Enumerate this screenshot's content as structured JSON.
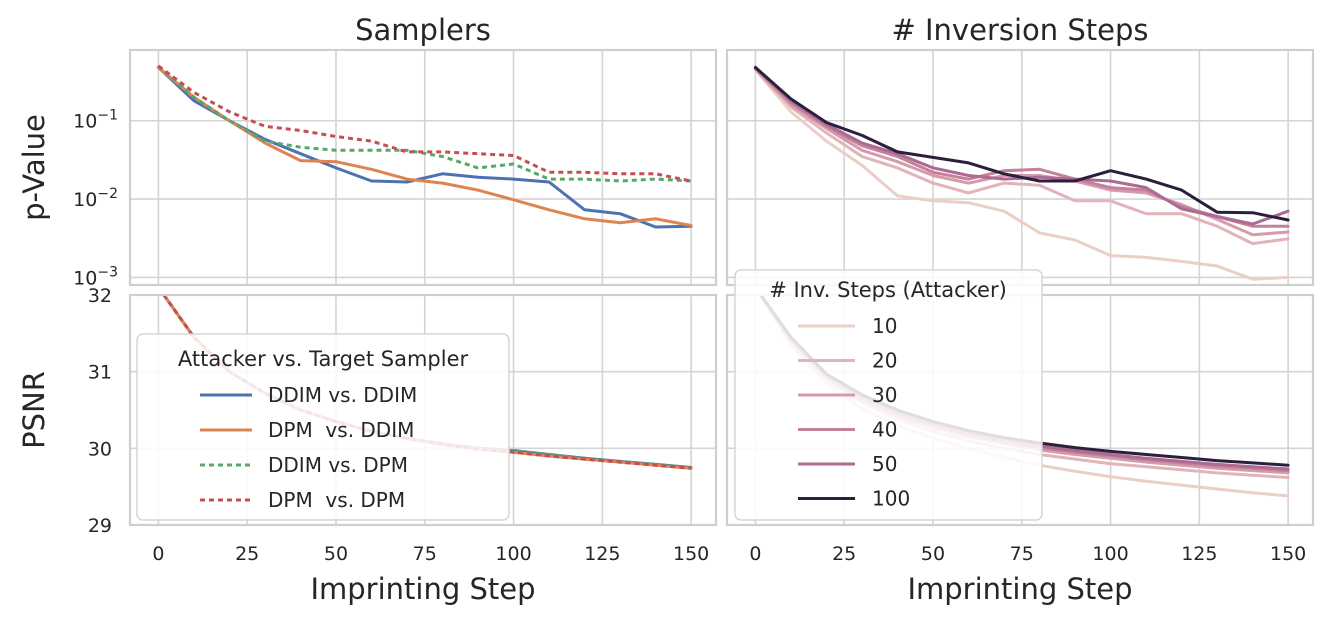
{
  "chart_data": [
    {
      "type": "line",
      "panel": "top-left",
      "title": "Samplers",
      "xlabel": "",
      "ylabel": "p-Value",
      "yscale": "log",
      "xlim": [
        -8,
        157
      ],
      "ylim": [
        0.0008,
        0.8
      ],
      "xticks": [
        0,
        25,
        50,
        75,
        100,
        125,
        150
      ],
      "yticks": [
        0.001,
        0.01,
        0.1
      ],
      "ytick_labels": [
        {
          "base": "10",
          "exp": "−3"
        },
        {
          "base": "10",
          "exp": "−2"
        },
        {
          "base": "10",
          "exp": "−1"
        }
      ],
      "grid": true,
      "x": [
        0,
        10,
        20,
        30,
        40,
        50,
        60,
        70,
        80,
        90,
        100,
        110,
        120,
        130,
        140,
        150
      ],
      "series": [
        {
          "name": "DDIM vs. DDIM",
          "color": "#4c72b0",
          "dash": "solid",
          "values": [
            0.48,
            0.18,
            0.1,
            0.058,
            0.038,
            0.025,
            0.017,
            0.0165,
            0.021,
            0.019,
            0.018,
            0.0165,
            0.0073,
            0.0065,
            0.0044,
            0.0045
          ]
        },
        {
          "name": "DPM  vs. DDIM",
          "color": "#dd8452",
          "dash": "solid",
          "values": [
            0.48,
            0.2,
            0.1,
            0.052,
            0.031,
            0.03,
            0.024,
            0.018,
            0.016,
            0.013,
            0.0098,
            0.0073,
            0.0056,
            0.005,
            0.0056,
            0.0046
          ]
        },
        {
          "name": "DDIM vs. DPM",
          "color": "#55a868",
          "dash": "dotted",
          "values": [
            0.5,
            0.2,
            0.1,
            0.055,
            0.046,
            0.042,
            0.042,
            0.042,
            0.035,
            0.025,
            0.028,
            0.018,
            0.018,
            0.017,
            0.018,
            0.017
          ]
        },
        {
          "name": "DPM  vs. DPM",
          "color": "#c44e52",
          "dash": "dotted",
          "values": [
            0.5,
            0.23,
            0.13,
            0.085,
            0.075,
            0.063,
            0.055,
            0.04,
            0.04,
            0.038,
            0.036,
            0.022,
            0.022,
            0.021,
            0.021,
            0.017
          ]
        }
      ]
    },
    {
      "type": "line",
      "panel": "top-right",
      "title": "# Inversion Steps",
      "xlabel": "",
      "ylabel": "",
      "yscale": "log",
      "xlim": [
        -8,
        157
      ],
      "ylim": [
        0.0008,
        0.8
      ],
      "xticks": [
        0,
        25,
        50,
        75,
        100,
        125,
        150
      ],
      "yticks": [
        0.001,
        0.01,
        0.1
      ],
      "grid": true,
      "x": [
        0,
        10,
        20,
        30,
        40,
        50,
        60,
        70,
        80,
        90,
        100,
        110,
        120,
        130,
        140,
        150
      ],
      "series": [
        {
          "name": "10",
          "color": "#ebcfc7",
          "dash": "solid",
          "values": [
            0.45,
            0.13,
            0.055,
            0.027,
            0.011,
            0.0095,
            0.009,
            0.007,
            0.0037,
            0.003,
            0.0019,
            0.0018,
            0.0016,
            0.0014,
            0.00095,
            0.001
          ]
        },
        {
          "name": "20",
          "color": "#e2b3b8",
          "dash": "solid",
          "values": [
            0.45,
            0.15,
            0.07,
            0.035,
            0.025,
            0.016,
            0.012,
            0.016,
            0.015,
            0.0095,
            0.0095,
            0.0065,
            0.0065,
            0.0045,
            0.0027,
            0.0031
          ]
        },
        {
          "name": "30",
          "color": "#d69aab",
          "dash": "solid",
          "values": [
            0.46,
            0.16,
            0.08,
            0.042,
            0.03,
            0.02,
            0.016,
            0.02,
            0.02,
            0.017,
            0.013,
            0.012,
            0.0085,
            0.0055,
            0.0035,
            0.0038
          ]
        },
        {
          "name": "40",
          "color": "#c4819c",
          "dash": "solid",
          "values": [
            0.47,
            0.17,
            0.085,
            0.048,
            0.035,
            0.022,
            0.018,
            0.023,
            0.024,
            0.018,
            0.014,
            0.013,
            0.008,
            0.006,
            0.0045,
            0.0045
          ]
        },
        {
          "name": "50",
          "color": "#ad6b93",
          "dash": "solid",
          "values": [
            0.47,
            0.18,
            0.09,
            0.052,
            0.038,
            0.025,
            0.02,
            0.018,
            0.019,
            0.018,
            0.017,
            0.014,
            0.0075,
            0.006,
            0.0048,
            0.007
          ]
        },
        {
          "name": "100",
          "color": "#2d1e3e",
          "dash": "solid",
          "values": [
            0.48,
            0.19,
            0.095,
            0.065,
            0.04,
            0.034,
            0.029,
            0.021,
            0.017,
            0.017,
            0.023,
            0.018,
            0.013,
            0.0068,
            0.0067,
            0.0054
          ]
        }
      ]
    },
    {
      "type": "line",
      "panel": "bottom-left",
      "title": "",
      "xlabel": "Imprinting Step",
      "ylabel": "PSNR",
      "yscale": "linear",
      "xlim": [
        -8,
        157
      ],
      "ylim": [
        29,
        32
      ],
      "xticks": [
        0,
        25,
        50,
        75,
        100,
        125,
        150
      ],
      "yticks": [
        29,
        30,
        31,
        32
      ],
      "grid": true,
      "legend_title": "Attacker vs. Target Sampler",
      "legend_position": "center-left",
      "x": [
        0,
        10,
        20,
        30,
        40,
        50,
        60,
        70,
        80,
        90,
        100,
        110,
        120,
        130,
        140,
        150
      ],
      "series": [
        {
          "name": "DDIM vs. DDIM",
          "color": "#4c72b0",
          "dash": "solid",
          "values": [
            32.1,
            31.45,
            31.0,
            30.72,
            30.5,
            30.35,
            30.22,
            30.13,
            30.06,
            30.0,
            29.97,
            29.92,
            29.87,
            29.83,
            29.79,
            29.75
          ]
        },
        {
          "name": "DPM  vs. DDIM",
          "color": "#dd8452",
          "dash": "solid",
          "values": [
            32.1,
            31.45,
            31.0,
            30.72,
            30.5,
            30.35,
            30.22,
            30.13,
            30.05,
            29.99,
            29.95,
            29.9,
            29.86,
            29.82,
            29.78,
            29.74
          ]
        },
        {
          "name": "DDIM vs. DPM",
          "color": "#55a868",
          "dash": "dotted",
          "values": [
            32.1,
            31.45,
            31.0,
            30.72,
            30.5,
            30.35,
            30.22,
            30.13,
            30.06,
            30.0,
            29.97,
            29.92,
            29.87,
            29.83,
            29.79,
            29.75
          ]
        },
        {
          "name": "DPM  vs. DPM",
          "color": "#c44e52",
          "dash": "dotted",
          "values": [
            32.1,
            31.45,
            31.0,
            30.72,
            30.5,
            30.35,
            30.22,
            30.13,
            30.05,
            29.99,
            29.95,
            29.9,
            29.86,
            29.82,
            29.78,
            29.74
          ]
        }
      ]
    },
    {
      "type": "line",
      "panel": "bottom-right",
      "title": "",
      "xlabel": "Imprinting Step",
      "ylabel": "",
      "yscale": "linear",
      "xlim": [
        -8,
        157
      ],
      "ylim": [
        29,
        32
      ],
      "xticks": [
        0,
        25,
        50,
        75,
        100,
        125,
        150
      ],
      "yticks": [
        29,
        30,
        31,
        32
      ],
      "grid": true,
      "legend_title": "# Inv. Steps (Attacker)",
      "legend_position": "upper-left",
      "x": [
        0,
        10,
        20,
        30,
        40,
        50,
        60,
        70,
        80,
        90,
        100,
        110,
        120,
        130,
        140,
        150
      ],
      "series": [
        {
          "name": "10",
          "color": "#ebcfc7",
          "dash": "solid",
          "values": [
            32.1,
            31.35,
            30.85,
            30.52,
            30.3,
            30.13,
            30.0,
            29.88,
            29.78,
            29.7,
            29.63,
            29.57,
            29.52,
            29.47,
            29.42,
            29.38
          ]
        },
        {
          "name": "20",
          "color": "#e2b3b8",
          "dash": "solid",
          "values": [
            32.1,
            31.38,
            30.9,
            30.6,
            30.38,
            30.22,
            30.1,
            30.0,
            29.92,
            29.86,
            29.8,
            29.76,
            29.72,
            29.68,
            29.65,
            29.62
          ]
        },
        {
          "name": "30",
          "color": "#d69aab",
          "dash": "solid",
          "values": [
            32.1,
            31.4,
            30.92,
            30.63,
            30.42,
            30.27,
            30.15,
            30.06,
            29.98,
            29.92,
            29.87,
            29.82,
            29.78,
            29.74,
            29.71,
            29.68
          ]
        },
        {
          "name": "40",
          "color": "#c4819c",
          "dash": "solid",
          "values": [
            32.1,
            31.42,
            30.94,
            30.66,
            30.45,
            30.3,
            30.18,
            30.09,
            30.01,
            29.95,
            29.9,
            29.85,
            29.81,
            29.77,
            29.74,
            29.71
          ]
        },
        {
          "name": "50",
          "color": "#ad6b93",
          "dash": "solid",
          "values": [
            32.1,
            31.43,
            30.95,
            30.68,
            30.47,
            30.32,
            30.2,
            30.11,
            30.03,
            29.97,
            29.92,
            29.87,
            29.83,
            29.79,
            29.76,
            29.73
          ]
        },
        {
          "name": "100",
          "color": "#2d1e3e",
          "dash": "solid",
          "values": [
            32.1,
            31.45,
            30.97,
            30.7,
            30.5,
            30.35,
            30.23,
            30.14,
            30.07,
            30.01,
            29.96,
            29.92,
            29.88,
            29.84,
            29.81,
            29.78
          ]
        }
      ]
    }
  ]
}
